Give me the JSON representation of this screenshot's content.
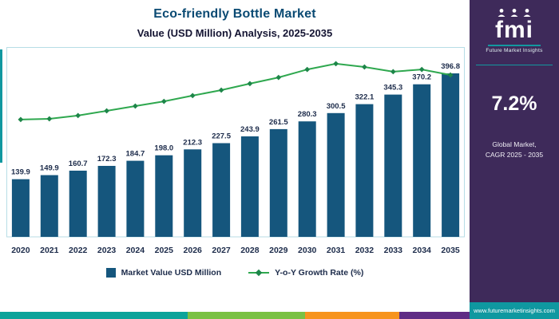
{
  "header": {
    "title": "Eco-friendly Bottle Market",
    "subtitle": "Value (USD Million) Analysis, 2025-2035"
  },
  "chart_data": {
    "type": "bar",
    "title": "Eco-friendly Bottle Market",
    "subtitle": "Value (USD Million) Analysis, 2025-2035",
    "xlabel": "",
    "ylabel": "",
    "ylim": [
      0,
      420
    ],
    "grid": false,
    "legend_position": "bottom",
    "categories": [
      "2020",
      "2021",
      "2022",
      "2023",
      "2024",
      "2025",
      "2026",
      "2027",
      "2028",
      "2029",
      "2030",
      "2031",
      "2032",
      "2033",
      "2034",
      "2035"
    ],
    "series": [
      {
        "name": "Market Value USD Million",
        "type": "bar",
        "color": "#15567d",
        "values": [
          139.9,
          149.9,
          160.7,
          172.3,
          184.7,
          198.0,
          212.3,
          227.5,
          243.9,
          261.5,
          280.3,
          300.5,
          322.1,
          345.3,
          370.2,
          396.8
        ]
      },
      {
        "name": "Y-o-Y Growth Rate (%)",
        "type": "line",
        "color": "#2fa84f",
        "marker_color": "#1d8649",
        "curve_fraction_of_plot_height": [
          0.618,
          0.622,
          0.639,
          0.664,
          0.689,
          0.714,
          0.744,
          0.773,
          0.807,
          0.84,
          0.882,
          0.912,
          0.895,
          0.87,
          0.882,
          0.853
        ]
      }
    ],
    "value_labels": [
      "139.9",
      "149.9",
      "160.7",
      "172.3",
      "184.7",
      "198.0",
      "212.3",
      "227.5",
      "243.9",
      "261.5",
      "280.3",
      "300.5",
      "322.1",
      "345.3",
      "370.2",
      "396.8"
    ]
  },
  "sidebar": {
    "logo_text": "fmi",
    "logo_subtext": "Future Market Insights",
    "stat_value": "7.2%",
    "stat_caption_line1": "Global Market,",
    "stat_caption_line2": "CAGR 2025 - 2035",
    "website": "www.futuremarketinsights.com",
    "bg_color": "#3e2a5a",
    "accent_color": "#0f98a0"
  },
  "footer_strip": {
    "segments": [
      {
        "color": "#0ba39a",
        "width_pct": 40
      },
      {
        "color": "#7ac143",
        "width_pct": 25
      },
      {
        "color": "#f7941d",
        "width_pct": 20
      },
      {
        "color": "#5f2c85",
        "width_pct": 15
      }
    ]
  }
}
